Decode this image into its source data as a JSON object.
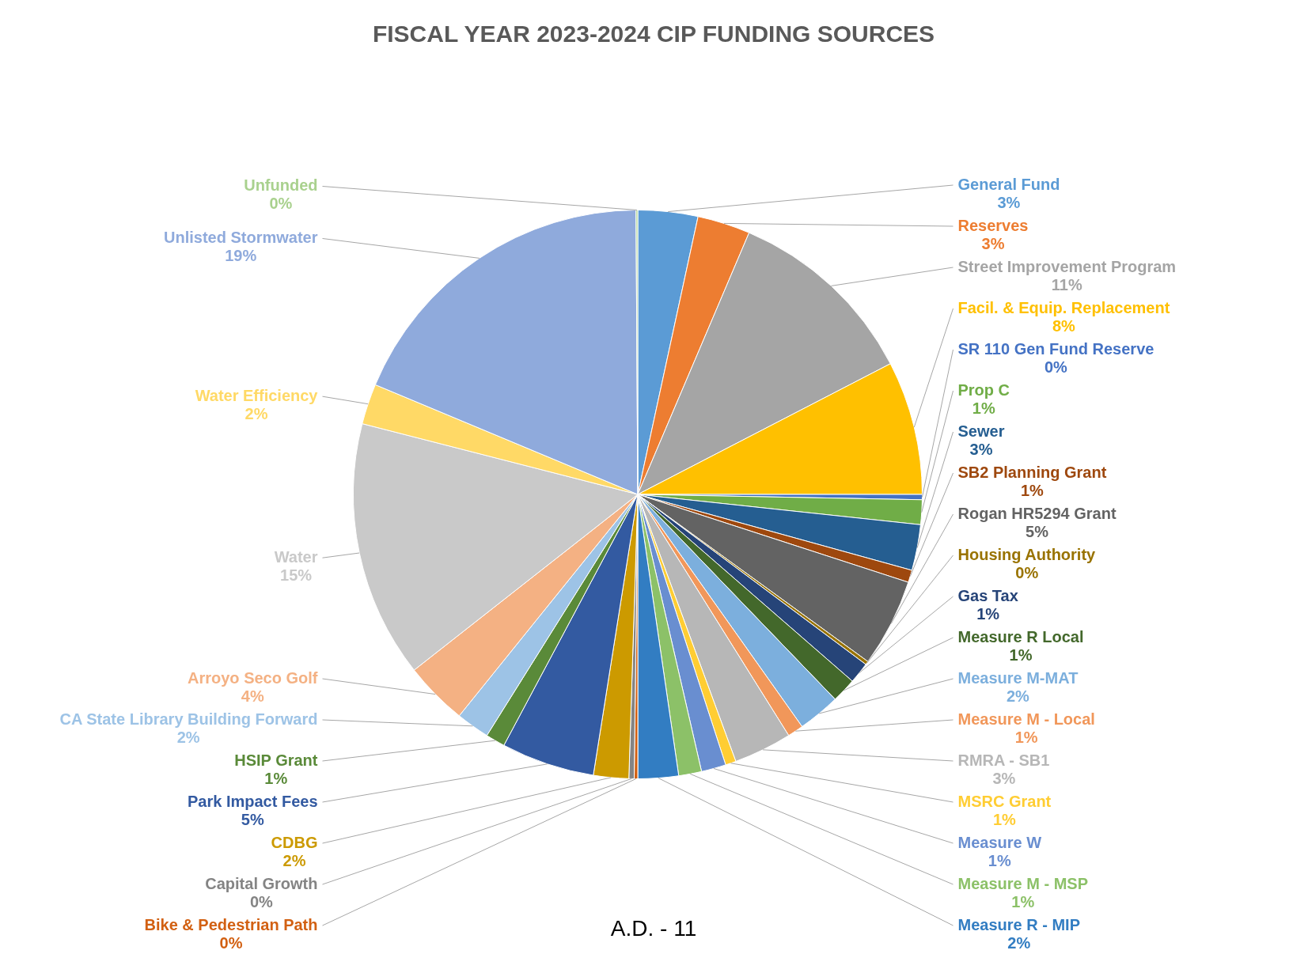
{
  "chart_data": {
    "type": "pie",
    "title": "FISCAL YEAR 2023-2024 CIP FUNDING SOURCES",
    "categories": [
      "General Fund",
      "Reserves",
      "Street Improvement Program",
      "Facil. & Equip. Replacement",
      "SR 110 Gen Fund Reserve",
      "Prop C",
      "Sewer",
      "SB2 Planning Grant",
      "Rogan HR5294 Grant",
      "Housing Authority",
      "Gas Tax",
      "Measure R Local",
      "Measure M-MAT",
      "Measure M - Local",
      "RMRA - SB1",
      "MSRC Grant",
      "Measure W",
      "Measure M - MSP",
      "Measure R - MIP",
      "Bike & Pedestrian Path",
      "Capital Growth",
      "CDBG",
      "Park Impact Fees",
      "HSIP Grant",
      "CA State Library Building Forward",
      "Arroyo Seco Golf",
      "Water",
      "Water Efficiency",
      "Unlisted Stormwater",
      "Unfunded"
    ],
    "values": [
      3.4,
      3.0,
      11.0,
      7.6,
      0.3,
      1.4,
      2.6,
      0.7,
      5.0,
      0.2,
      1.2,
      1.4,
      2.4,
      0.9,
      3.3,
      0.6,
      1.4,
      1.3,
      2.3,
      0.2,
      0.3,
      2.0,
      5.3,
      1.1,
      1.9,
      3.6,
      14.6,
      2.3,
      18.6,
      0.1
    ],
    "value_labels": [
      "3%",
      "3%",
      "11%",
      "8%",
      "0%",
      "1%",
      "3%",
      "1%",
      "5%",
      "0%",
      "1%",
      "1%",
      "2%",
      "1%",
      "3%",
      "1%",
      "1%",
      "1%",
      "2%",
      "0%",
      "0%",
      "2%",
      "5%",
      "1%",
      "2%",
      "4%",
      "15%",
      "2%",
      "19%",
      "0%"
    ],
    "colors": [
      "#5b9bd5",
      "#ed7d31",
      "#a5a5a5",
      "#ffc000",
      "#4472c4",
      "#70ad47",
      "#255e91",
      "#9e480e",
      "#636363",
      "#997300",
      "#264478",
      "#43682b",
      "#7cafdd",
      "#f1975a",
      "#b7b7b7",
      "#ffcd33",
      "#698ed0",
      "#8cc168",
      "#327dc2",
      "#d26012",
      "#848484",
      "#cc9a00",
      "#335aa1",
      "#5a8a39",
      "#9dc3e6",
      "#f4b183",
      "#c9c9c9",
      "#ffd966",
      "#8faadc",
      "#a9d18e"
    ],
    "legend": false,
    "annotations": [
      "A.D. - 11"
    ]
  }
}
